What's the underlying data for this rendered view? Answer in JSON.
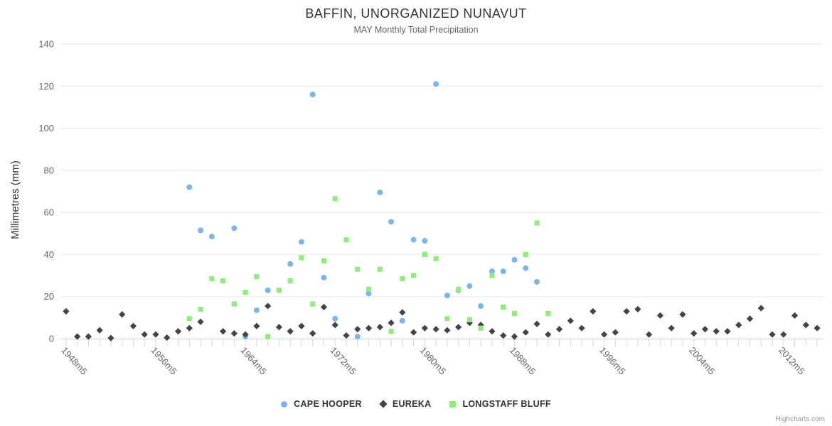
{
  "page": {
    "credits": "Highcharts.com"
  },
  "chart_data": {
    "type": "scatter",
    "title": "BAFFIN, UNORGANIZED NUNAVUT",
    "subtitle": "MAY Monthly Total Precipitation",
    "ylabel": "Millimetres (mm)",
    "xlabel": "",
    "ylim": [
      0,
      140
    ],
    "ytick_interval": 20,
    "ytick_labels": [
      "0",
      "20",
      "40",
      "60",
      "80",
      "100",
      "120",
      "140"
    ],
    "x_axis": {
      "start": 1948,
      "end": 2015,
      "suffix": "m5",
      "label_every": 8
    },
    "xtick_labels": [
      "1948m5",
      "1956m5",
      "1964m5",
      "1972m5",
      "1980m5",
      "1988m5",
      "1996m5",
      "2004m5",
      "2012m5"
    ],
    "grid": true,
    "legend_position": "bottom-center",
    "colors": {
      "grid": "#e6e6e6",
      "axis_line": "#ccd6eb",
      "tick": "#ccd6eb",
      "axis_label": "#666666",
      "title": "#333333",
      "subtitle": "#666666",
      "credits": "#999999"
    },
    "series": [
      {
        "name": "CAPE HOOPER",
        "marker": "circle",
        "color": "#7cb5ec",
        "points": [
          [
            1959,
            72
          ],
          [
            1960,
            51.5
          ],
          [
            1961,
            48.5
          ],
          [
            1963,
            52.5
          ],
          [
            1964,
            1
          ],
          [
            1965,
            13.5
          ],
          [
            1966,
            23
          ],
          [
            1968,
            35.5
          ],
          [
            1969,
            46
          ],
          [
            1970,
            116
          ],
          [
            1971,
            29
          ],
          [
            1972,
            9.5
          ],
          [
            1974,
            1
          ],
          [
            1975,
            21.5
          ],
          [
            1976,
            69.5
          ],
          [
            1977,
            55.5
          ],
          [
            1978,
            8.5
          ],
          [
            1979,
            47
          ],
          [
            1980,
            46.5
          ],
          [
            1981,
            121
          ],
          [
            1982,
            20.5
          ],
          [
            1983,
            23
          ],
          [
            1984,
            25
          ],
          [
            1985,
            15.5
          ],
          [
            1986,
            32
          ],
          [
            1987,
            32
          ],
          [
            1988,
            37.5
          ],
          [
            1989,
            33.5
          ],
          [
            1990,
            27
          ]
        ]
      },
      {
        "name": "EUREKA",
        "marker": "diamond",
        "color": "#434348",
        "points": [
          [
            1948,
            13
          ],
          [
            1949,
            1
          ],
          [
            1950,
            1
          ],
          [
            1951,
            4
          ],
          [
            1952,
            0.3
          ],
          [
            1953,
            11.5
          ],
          [
            1954,
            6
          ],
          [
            1955,
            2
          ],
          [
            1956,
            2
          ],
          [
            1957,
            0.5
          ],
          [
            1958,
            3.5
          ],
          [
            1959,
            5
          ],
          [
            1960,
            8
          ],
          [
            1962,
            3.5
          ],
          [
            1963,
            2.5
          ],
          [
            1964,
            2
          ],
          [
            1965,
            6
          ],
          [
            1966,
            15.5
          ],
          [
            1967,
            5.5
          ],
          [
            1968,
            3.5
          ],
          [
            1969,
            6
          ],
          [
            1970,
            2.5
          ],
          [
            1971,
            15
          ],
          [
            1972,
            6.5
          ],
          [
            1973,
            1.5
          ],
          [
            1974,
            4.5
          ],
          [
            1975,
            5
          ],
          [
            1976,
            5.5
          ],
          [
            1977,
            7.5
          ],
          [
            1978,
            12.5
          ],
          [
            1979,
            3
          ],
          [
            1980,
            5
          ],
          [
            1981,
            4.5
          ],
          [
            1982,
            4
          ],
          [
            1983,
            5.5
          ],
          [
            1984,
            7.5
          ],
          [
            1985,
            6.5
          ],
          [
            1986,
            3.5
          ],
          [
            1987,
            1.5
          ],
          [
            1988,
            1
          ],
          [
            1989,
            3
          ],
          [
            1990,
            7
          ],
          [
            1991,
            2
          ],
          [
            1992,
            4.5
          ],
          [
            1993,
            8.5
          ],
          [
            1994,
            5
          ],
          [
            1995,
            13
          ],
          [
            1996,
            2
          ],
          [
            1997,
            3
          ],
          [
            1998,
            13
          ],
          [
            1999,
            14
          ],
          [
            2000,
            2
          ],
          [
            2001,
            11
          ],
          [
            2002,
            5
          ],
          [
            2003,
            11.5
          ],
          [
            2004,
            2.5
          ],
          [
            2005,
            4.5
          ],
          [
            2006,
            3.5
          ],
          [
            2007,
            3.5
          ],
          [
            2008,
            6.5
          ],
          [
            2009,
            9.5
          ],
          [
            2010,
            14.5
          ],
          [
            2011,
            2
          ],
          [
            2012,
            2
          ],
          [
            2013,
            11
          ],
          [
            2014,
            6.5
          ],
          [
            2015,
            5
          ]
        ]
      },
      {
        "name": "LONGSTAFF BLUFF",
        "marker": "square",
        "color": "#90ed7d",
        "points": [
          [
            1959,
            9.5
          ],
          [
            1960,
            14
          ],
          [
            1961,
            28.5
          ],
          [
            1962,
            27.5
          ],
          [
            1963,
            16.5
          ],
          [
            1964,
            22
          ],
          [
            1965,
            29.5
          ],
          [
            1966,
            1
          ],
          [
            1967,
            23
          ],
          [
            1968,
            27.5
          ],
          [
            1969,
            38.5
          ],
          [
            1970,
            16.5
          ],
          [
            1971,
            37
          ],
          [
            1972,
            66.5
          ],
          [
            1973,
            47
          ],
          [
            1974,
            33
          ],
          [
            1975,
            23.5
          ],
          [
            1976,
            33
          ],
          [
            1977,
            3.5
          ],
          [
            1978,
            28.5
          ],
          [
            1979,
            30
          ],
          [
            1980,
            40
          ],
          [
            1981,
            38
          ],
          [
            1982,
            9.5
          ],
          [
            1983,
            23.5
          ],
          [
            1984,
            9
          ],
          [
            1985,
            5
          ],
          [
            1986,
            30
          ],
          [
            1987,
            15
          ],
          [
            1988,
            12
          ],
          [
            1989,
            40
          ],
          [
            1990,
            55
          ],
          [
            1991,
            12
          ]
        ]
      }
    ]
  }
}
